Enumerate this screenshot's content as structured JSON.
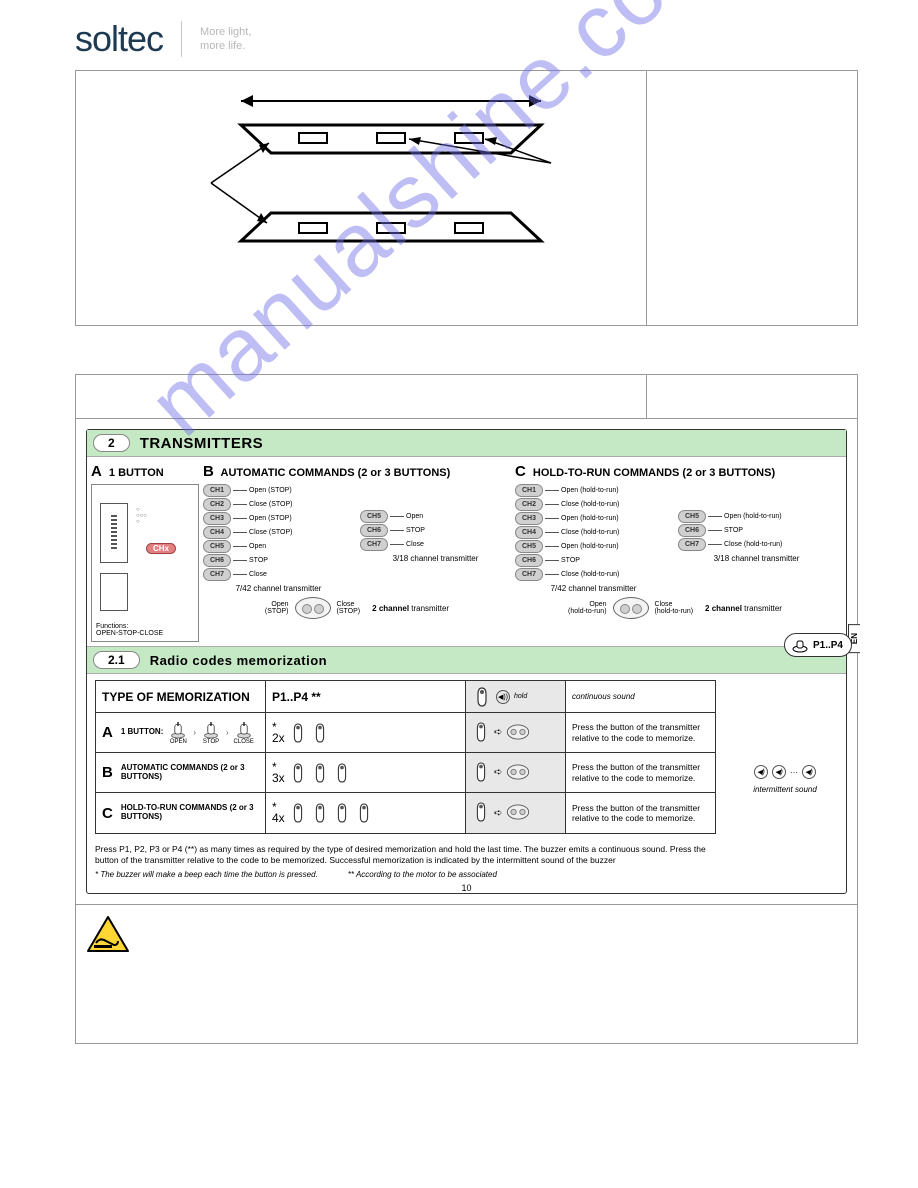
{
  "brand": {
    "logo": "soltec",
    "tagline1": "More light,",
    "tagline2": "more life."
  },
  "watermark": "manualshine.com",
  "section2": {
    "badge": "2",
    "title": "TRANSMITTERS",
    "colA": {
      "letter": "A",
      "head": "1 BUTTON",
      "chx": "CHx",
      "fn_label": "Functions:",
      "fn_value": "OPEN-STOP-CLOSE"
    },
    "colB": {
      "letter": "B",
      "head": "AUTOMATIC COMMANDS (2 or 3 BUTTONS)",
      "left": {
        "items": [
          {
            "ch": "CH1",
            "lbl": "Open (STOP)"
          },
          {
            "ch": "CH2",
            "lbl": "Close (STOP)"
          },
          {
            "ch": "CH3",
            "lbl": "Open (STOP)"
          },
          {
            "ch": "CH4",
            "lbl": "Close (STOP)"
          },
          {
            "ch": "CH5",
            "lbl": "Open"
          },
          {
            "ch": "CH6",
            "lbl": "STOP"
          },
          {
            "ch": "CH7",
            "lbl": "Close"
          }
        ],
        "cap": "7/42 channel transmitter"
      },
      "right": {
        "items": [
          {
            "ch": "CH5",
            "lbl": "Open"
          },
          {
            "ch": "CH6",
            "lbl": "STOP"
          },
          {
            "ch": "CH7",
            "lbl": "Close"
          }
        ],
        "cap": "3/18 channel transmitter"
      },
      "fob": {
        "l1": "Open",
        "l1b": "(STOP)",
        "r1": "Close",
        "r1b": "(STOP)",
        "cap": "2 channel transmitter"
      }
    },
    "colC": {
      "letter": "C",
      "head": "HOLD-TO-RUN COMMANDS (2 or 3 BUTTONS)",
      "left": {
        "items": [
          {
            "ch": "CH1",
            "lbl": "Open (hold-to-run)"
          },
          {
            "ch": "CH2",
            "lbl": "Close (hold-to-run)"
          },
          {
            "ch": "CH3",
            "lbl": "Open (hold-to-run)"
          },
          {
            "ch": "CH4",
            "lbl": "Close (hold-to-run)"
          },
          {
            "ch": "CH5",
            "lbl": "Open (hold-to-run)"
          },
          {
            "ch": "CH6",
            "lbl": "STOP"
          },
          {
            "ch": "CH7",
            "lbl": "Close (hold-to-run)"
          }
        ],
        "cap": "7/42 channel transmitter"
      },
      "right": {
        "items": [
          {
            "ch": "CH5",
            "lbl": "Open (hold-to-run)"
          },
          {
            "ch": "CH6",
            "lbl": "STOP"
          },
          {
            "ch": "CH7",
            "lbl": "Close (hold-to-run)"
          }
        ],
        "cap": "3/18 channel transmitter"
      },
      "fob": {
        "l1": "Open",
        "l1b": "(hold-to-run)",
        "r1": "Close",
        "r1b": "(hold-to-run)",
        "cap": "2 channel transmitter"
      }
    }
  },
  "section21": {
    "badge": "2.1",
    "title": "Radio codes memorization",
    "float_label": "P1..P4",
    "head_c1": "TYPE OF MEMORIZATION",
    "head_c2": "P1..P4 **",
    "head_hold": "hold",
    "head_sound": "continuous sound",
    "rows": [
      {
        "letter": "A",
        "desc": "1 BUTTON:",
        "seq": [
          "OPEN",
          "STOP",
          "CLOSE"
        ],
        "mult": "*\n2x",
        "instr": "Press the button of the transmitter relative to the code to memorize."
      },
      {
        "letter": "B",
        "desc": "AUTOMATIC COMMANDS (2 or 3 BUTTONS)",
        "mult": "*\n3x",
        "instr": "Press the button of the transmitter relative to the code to memorize."
      },
      {
        "letter": "C",
        "desc": "HOLD-TO-RUN COMMANDS (2 or 3 BUTTONS)",
        "mult": "*\n4x",
        "instr": "Press the button of the transmitter relative to the code to memorize."
      }
    ],
    "side_label": "intermittent sound",
    "note": "Press P1, P2, P3 or P4 (**) as many times as required by the type of desired memorization and hold the last time. The buzzer emits a continuous sound. Press the button of the transmitter relative to the code to be memorized. Successful memorization is indicated by the intermittent sound of the buzzer",
    "foot1": "* The buzzer will make a beep each time the button is pressed.",
    "foot2": "** According to the motor to be associated",
    "page_num": "10",
    "en_tab": "EN"
  },
  "colors": {
    "brand": "#1e3a52",
    "green_header": "#c5e8c5",
    "chip_grey": "#d0d0d0",
    "chip_red": "#e08080",
    "grey_seg": "#e8e8e8",
    "watermark": "rgba(110,110,230,0.45)",
    "warn_yellow": "#ffd633",
    "warn_border": "#000000"
  }
}
